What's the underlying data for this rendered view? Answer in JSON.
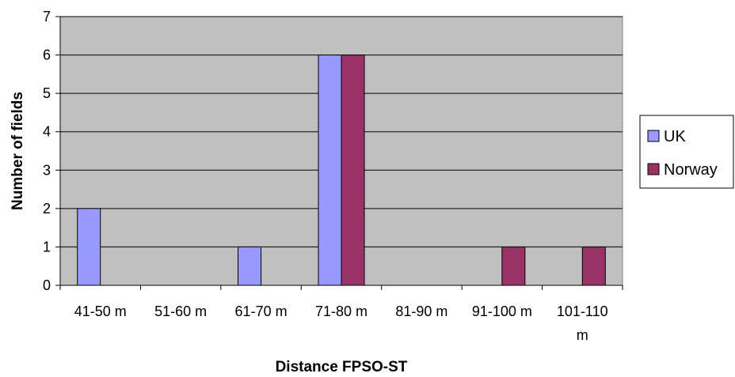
{
  "chart_data": {
    "type": "bar",
    "categories": [
      "41-50 m",
      "51-60 m",
      "61-70 m",
      "71-80 m",
      "81-90 m",
      "91-100 m",
      "101-110 m"
    ],
    "series": [
      {
        "name": "UK",
        "values": [
          2,
          0,
          1,
          6,
          0,
          0,
          0
        ],
        "color": "#9999ff"
      },
      {
        "name": "Norway",
        "values": [
          0,
          0,
          0,
          6,
          0,
          1,
          1
        ],
        "color": "#993366"
      }
    ],
    "xlabel": "Distance FPSO-ST",
    "ylabel": "Number of fields",
    "ylim": [
      0,
      7
    ],
    "yticks": [
      0,
      1,
      2,
      3,
      4,
      5,
      6,
      7
    ],
    "grid": true,
    "legend_position": "right",
    "plot_background": "#c0c0c0"
  }
}
